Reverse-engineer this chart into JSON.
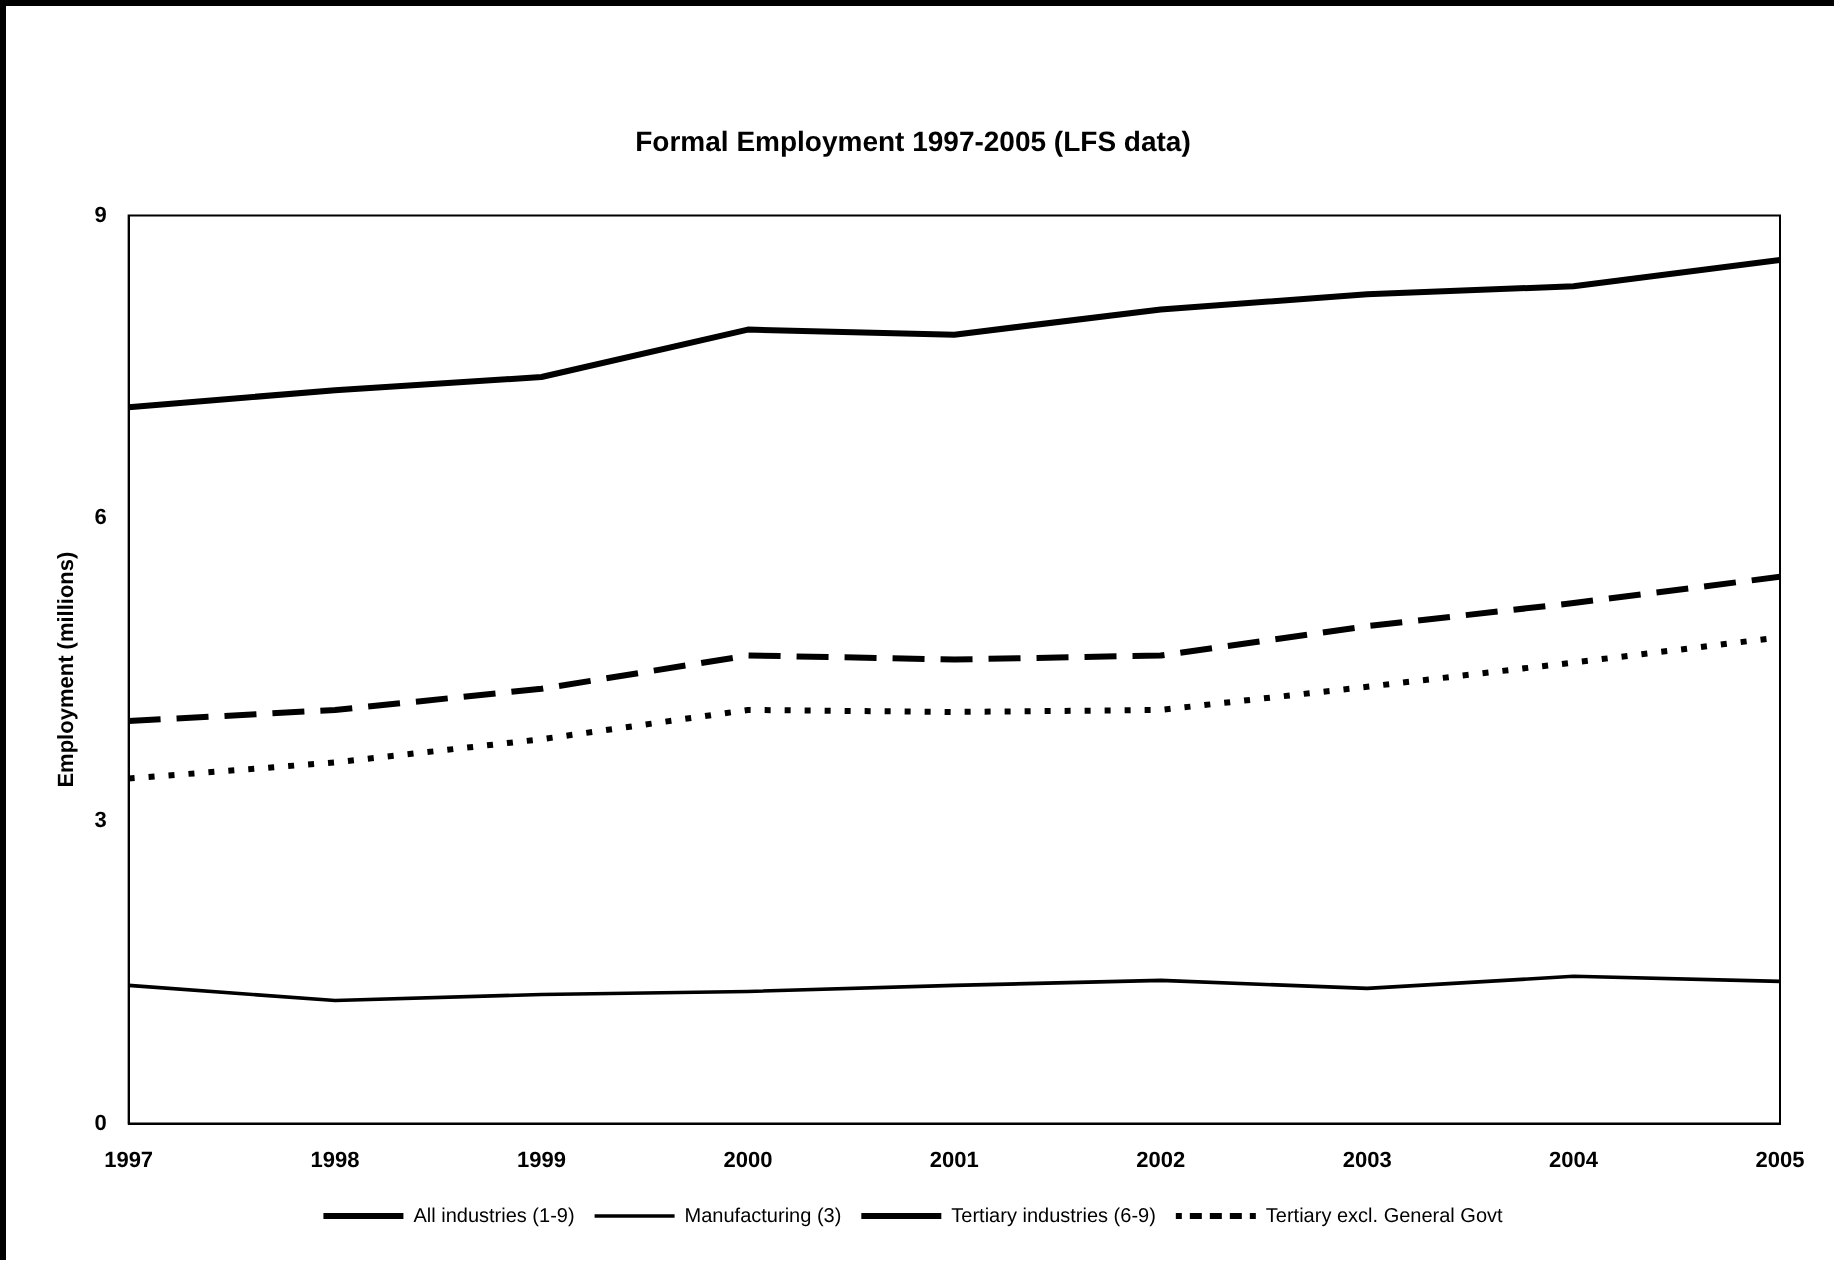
{
  "chart_data": {
    "type": "line",
    "title": "Formal Employment 1997-2005 (LFS data)",
    "ylabel": "Employment (millions)",
    "categories": [
      "1997",
      "1998",
      "1999",
      "2000",
      "2001",
      "2002",
      "2003",
      "2004",
      "2005"
    ],
    "ylim": [
      0,
      9
    ],
    "yticks": [
      0,
      3,
      6,
      9
    ],
    "grid": false,
    "legend": "bottom",
    "marker": "none",
    "series": [
      {
        "name": "All industries (1-9)",
        "color": "#000000",
        "line_style": "solid",
        "values": [
          7.1,
          7.27,
          7.4,
          7.87,
          7.82,
          8.07,
          8.22,
          8.3,
          8.56
        ]
      },
      {
        "name": "Manufacturing (3)",
        "color": "#000000",
        "line_style": "solid",
        "values": [
          1.37,
          1.22,
          1.28,
          1.31,
          1.37,
          1.42,
          1.34,
          1.46,
          1.41
        ]
      },
      {
        "name": "Tertiary industries (6-9)",
        "color": "#000000",
        "line_style": "dashed",
        "values": [
          3.99,
          4.1,
          4.31,
          4.64,
          4.6,
          4.64,
          4.93,
          5.16,
          5.42
        ]
      },
      {
        "name": "Tertiary excl. General Govt",
        "color": "#000000",
        "line_style": "dotted",
        "values": [
          3.42,
          3.58,
          3.81,
          4.1,
          4.08,
          4.1,
          4.33,
          4.57,
          4.82
        ]
      }
    ]
  }
}
